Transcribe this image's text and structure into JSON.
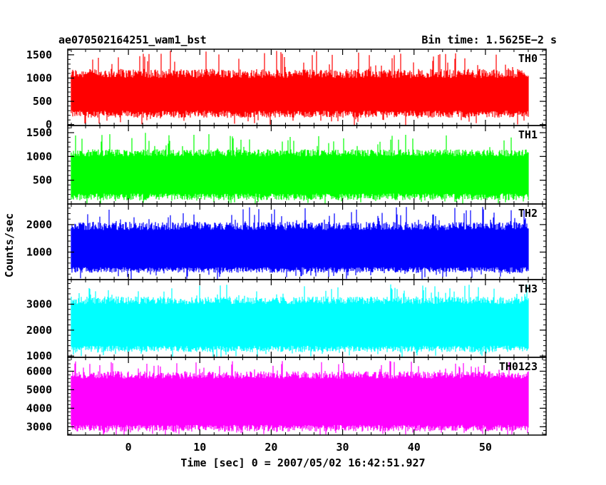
{
  "header": {
    "title": "ae070502164251_wam1_bst",
    "bin_time": "Bin time: 1.5625E−2 s"
  },
  "chart_data": {
    "type": "line",
    "ylabel": "Counts/sec",
    "xlabel": "Time [sec] 0 = 2007/05/02 16:42:51.927",
    "xlim": [
      -8.5,
      58.5
    ],
    "data_x_range": [
      -8,
      56
    ],
    "x_ticks": [
      0,
      10,
      20,
      30,
      40,
      50
    ],
    "grid": false,
    "panels": [
      {
        "name": "TH0",
        "color": "#ff0000",
        "ylim": [
          -20,
          1620
        ],
        "yticks": [
          0,
          500,
          1000,
          1500
        ],
        "base": [
          150,
          300
        ],
        "typical_high": [
          1000,
          1200
        ],
        "peak_max": 1600
      },
      {
        "name": "TH1",
        "color": "#00ff00",
        "ylim": [
          0,
          1650
        ],
        "yticks": [
          500,
          1000,
          1500
        ],
        "base": [
          80,
          220
        ],
        "typical_high": [
          1000,
          1150
        ],
        "peak_max": 1500
      },
      {
        "name": "TH2",
        "color": "#0000ff",
        "ylim": [
          0,
          2750
        ],
        "yticks": [
          1000,
          2000
        ],
        "base": [
          250,
          450
        ],
        "typical_high": [
          1800,
          2100
        ],
        "peak_max": 2650
      },
      {
        "name": "TH3",
        "color": "#00ffff",
        "ylim": [
          950,
          3950
        ],
        "yticks": [
          1000,
          2000,
          3000
        ],
        "base": [
          1150,
          1400
        ],
        "typical_high": [
          3000,
          3300
        ],
        "peak_max": 3800
      },
      {
        "name": "TH0123",
        "color": "#ff00ff",
        "ylim": [
          2550,
          6750
        ],
        "yticks": [
          3000,
          4000,
          5000,
          6000
        ],
        "base": [
          2750,
          3100
        ],
        "typical_high": [
          5600,
          6000
        ],
        "peak_max": 6600
      }
    ]
  }
}
